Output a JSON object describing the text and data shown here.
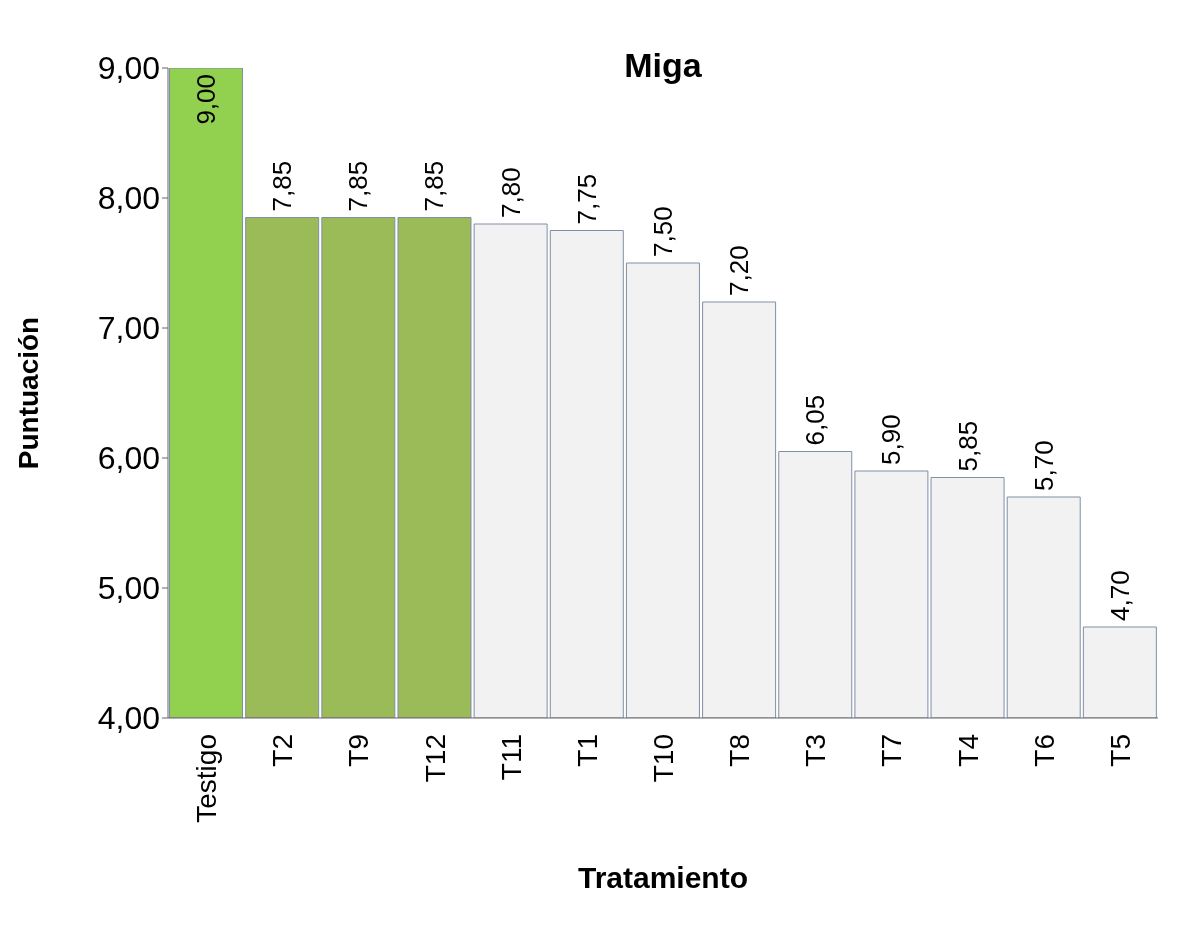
{
  "chart_data": {
    "type": "bar",
    "title": "Miga",
    "xlabel": "Tratamiento",
    "ylabel": "Puntuación",
    "categories": [
      "Testigo",
      "T2",
      "T9",
      "T12",
      "T11",
      "T1",
      "T10",
      "T8",
      "T3",
      "T7",
      "T4",
      "T6",
      "T5"
    ],
    "values": [
      9.0,
      7.85,
      7.85,
      7.85,
      7.8,
      7.75,
      7.5,
      7.2,
      6.05,
      5.9,
      5.85,
      5.7,
      4.7
    ],
    "colors": [
      "#92d050",
      "#9bbb59",
      "#9bbb59",
      "#9bbb59",
      "#f2f2f2",
      "#f2f2f2",
      "#f2f2f2",
      "#f2f2f2",
      "#f2f2f2",
      "#f2f2f2",
      "#f2f2f2",
      "#f2f2f2",
      "#f2f2f2"
    ],
    "value_labels": [
      "9,00",
      "7,85",
      "7,85",
      "7,85",
      "7,80",
      "7,75",
      "7,50",
      "7,20",
      "6,05",
      "5,90",
      "5,85",
      "5,70",
      "4,70"
    ],
    "ylim": [
      4,
      9
    ],
    "yticks": [
      {
        "value": 4,
        "label": "4,00"
      },
      {
        "value": 5,
        "label": "5,00"
      },
      {
        "value": 6,
        "label": "6,00"
      },
      {
        "value": 7,
        "label": "7,00"
      },
      {
        "value": 8,
        "label": "8,00"
      },
      {
        "value": 9,
        "label": "9,00"
      }
    ],
    "grid": false,
    "legend": false
  }
}
